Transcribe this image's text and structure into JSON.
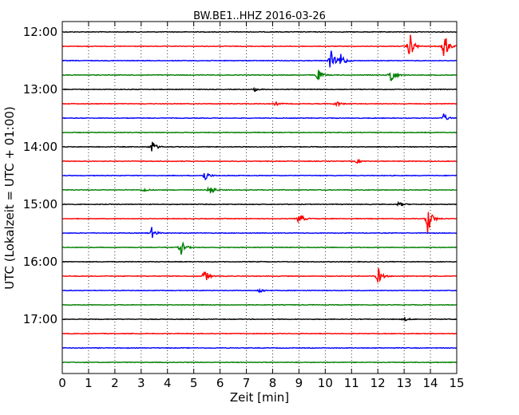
{
  "chart_data": {
    "type": "line",
    "title": "BW.BE1..HHZ 2016-03-26",
    "xlabel": "Zeit  [min]",
    "ylabel": "UTC (Lokalzeit = UTC + 01:00)",
    "xlim": [
      0,
      15
    ],
    "xticks": [
      "0",
      "1",
      "2",
      "3",
      "4",
      "5",
      "6",
      "7",
      "8",
      "9",
      "10",
      "11",
      "12",
      "13",
      "14",
      "15"
    ],
    "yticks": [
      "12:00",
      "13:00",
      "14:00",
      "15:00",
      "16:00",
      "17:00"
    ],
    "grid": "vertical dotted",
    "color_cycle": [
      "#000000",
      "#ff0000",
      "#0000ff",
      "#007f00"
    ],
    "trace_interval_min": 15,
    "traces": [
      {
        "start": "12:00",
        "color": "#000000",
        "events": []
      },
      {
        "start": "12:15",
        "color": "#ff0000",
        "events": [
          {
            "t": 13.2,
            "amp": 2.2
          },
          {
            "t": 14.5,
            "amp": 2.6
          }
        ]
      },
      {
        "start": "12:30",
        "color": "#0000ff",
        "events": [
          {
            "t": 10.2,
            "amp": 1.7
          },
          {
            "t": 10.6,
            "amp": 1.1
          }
        ]
      },
      {
        "start": "12:45",
        "color": "#007f00",
        "events": [
          {
            "t": 9.7,
            "amp": 1.0
          },
          {
            "t": 12.5,
            "amp": 1.5
          }
        ]
      },
      {
        "start": "13:00",
        "color": "#000000",
        "events": [
          {
            "t": 7.3,
            "amp": 0.3
          }
        ]
      },
      {
        "start": "13:15",
        "color": "#ff0000",
        "events": [
          {
            "t": 8.1,
            "amp": 0.3
          },
          {
            "t": 10.4,
            "amp": 0.5
          }
        ]
      },
      {
        "start": "13:30",
        "color": "#0000ff",
        "events": [
          {
            "t": 14.5,
            "amp": 0.6
          }
        ]
      },
      {
        "start": "13:45",
        "color": "#007f00",
        "events": []
      },
      {
        "start": "14:00",
        "color": "#000000",
        "events": [
          {
            "t": 3.4,
            "amp": 1.0
          }
        ]
      },
      {
        "start": "14:15",
        "color": "#ff0000",
        "events": [
          {
            "t": 11.2,
            "amp": 0.3
          }
        ]
      },
      {
        "start": "14:30",
        "color": "#0000ff",
        "events": [
          {
            "t": 5.4,
            "amp": 0.9
          }
        ]
      },
      {
        "start": "14:45",
        "color": "#007f00",
        "events": [
          {
            "t": 5.6,
            "amp": 1.0
          },
          {
            "t": 3.1,
            "amp": 0.3
          }
        ]
      },
      {
        "start": "15:00",
        "color": "#000000",
        "events": [
          {
            "t": 12.8,
            "amp": 0.4
          }
        ]
      },
      {
        "start": "15:15",
        "color": "#ff0000",
        "events": [
          {
            "t": 9.0,
            "amp": 1.0
          },
          {
            "t": 13.9,
            "amp": 2.4
          }
        ]
      },
      {
        "start": "15:30",
        "color": "#0000ff",
        "events": [
          {
            "t": 3.4,
            "amp": 0.8
          }
        ]
      },
      {
        "start": "15:45",
        "color": "#007f00",
        "events": [
          {
            "t": 4.5,
            "amp": 1.2
          }
        ]
      },
      {
        "start": "16:00",
        "color": "#000000",
        "events": []
      },
      {
        "start": "16:15",
        "color": "#ff0000",
        "events": [
          {
            "t": 5.4,
            "amp": 1.1
          },
          {
            "t": 12.0,
            "amp": 1.3
          }
        ]
      },
      {
        "start": "16:30",
        "color": "#0000ff",
        "events": [
          {
            "t": 7.5,
            "amp": 0.4
          }
        ]
      },
      {
        "start": "16:45",
        "color": "#007f00",
        "events": []
      },
      {
        "start": "17:00",
        "color": "#000000",
        "events": [
          {
            "t": 13.0,
            "amp": 0.3
          }
        ]
      },
      {
        "start": "17:15",
        "color": "#ff0000",
        "events": []
      },
      {
        "start": "17:30",
        "color": "#0000ff",
        "events": []
      },
      {
        "start": "17:45",
        "color": "#007f00",
        "events": []
      }
    ]
  }
}
